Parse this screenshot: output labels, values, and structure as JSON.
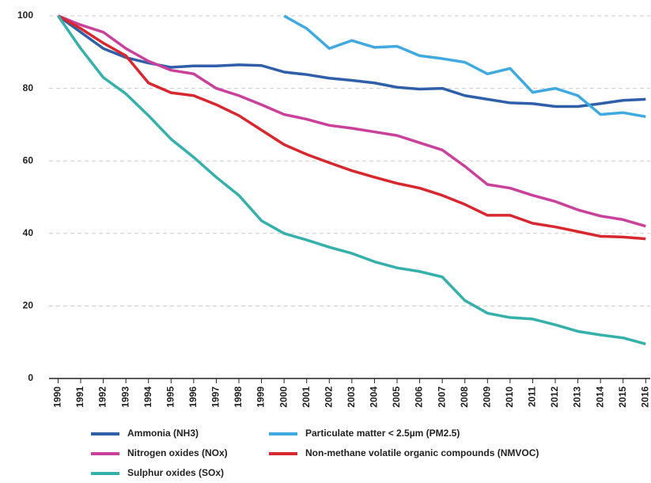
{
  "chart_data": {
    "type": "line",
    "x": [
      1990,
      1991,
      1992,
      1993,
      1994,
      1995,
      1996,
      1997,
      1998,
      1999,
      2000,
      2001,
      2002,
      2003,
      2004,
      2005,
      2006,
      2007,
      2008,
      2009,
      2010,
      2011,
      2012,
      2013,
      2014,
      2015,
      2016
    ],
    "xlim": [
      1989.6,
      2016.2
    ],
    "xticks": [
      1990,
      1991,
      1992,
      1993,
      1994,
      1995,
      1996,
      1997,
      1998,
      1999,
      2000,
      2001,
      2002,
      2003,
      2004,
      2005,
      2006,
      2007,
      2008,
      2009,
      2010,
      2011,
      2012,
      2013,
      2014,
      2015,
      2016
    ],
    "ylim": [
      0,
      100
    ],
    "yticks": [
      0,
      20,
      40,
      60,
      80,
      100
    ],
    "grid": true,
    "series": [
      {
        "name": "Ammonia (NH3)",
        "color": "#2f5fa8",
        "values": [
          100,
          95.5,
          91,
          88.5,
          87,
          85.8,
          86.2,
          86.2,
          86.5,
          86.3,
          84.5,
          83.8,
          82.8,
          82.2,
          81.5,
          80.3,
          79.8,
          80,
          78,
          77,
          76,
          75.8,
          75,
          75,
          75.8,
          76.7,
          77
        ]
      },
      {
        "name": "Particulate matter < 2.5µm (PM2.5)",
        "color": "#3fa9e0",
        "values": [
          null,
          null,
          null,
          null,
          null,
          null,
          null,
          null,
          null,
          null,
          100,
          96.5,
          91,
          93.2,
          91.3,
          91.6,
          89,
          88.2,
          87.2,
          84,
          85.5,
          78.9,
          80,
          78,
          72.8,
          73.3,
          72.2
        ]
      },
      {
        "name": "Nitrogen oxides (NOx)",
        "color": "#c9419a",
        "values": [
          100,
          97.5,
          95.5,
          91,
          87.5,
          85,
          84,
          80,
          78,
          75.5,
          72.8,
          71.5,
          69.8,
          69,
          68,
          67,
          65,
          63,
          58.5,
          53.5,
          52.5,
          50.5,
          48.8,
          46.5,
          44.8,
          43.8,
          42
        ]
      },
      {
        "name": "Non-methane volatile organic compounds (NMVOC)",
        "color": "#d7272f",
        "values": [
          100,
          96.5,
          92.5,
          89,
          81.5,
          78.8,
          78,
          75.5,
          72.5,
          68.5,
          64.5,
          61.8,
          59.5,
          57.3,
          55.5,
          53.8,
          52.5,
          50.5,
          48,
          45,
          45,
          42.8,
          41.8,
          40.5,
          39.2,
          39,
          38.5
        ]
      },
      {
        "name": "Sulphur oxides (SOx)",
        "color": "#35b0aa",
        "values": [
          100,
          91,
          83,
          78.5,
          72.5,
          66,
          61,
          55.5,
          50.5,
          43.5,
          40,
          38.2,
          36.2,
          34.5,
          32.2,
          30.5,
          29.5,
          28,
          21.5,
          18,
          16.8,
          16.4,
          14.8,
          13,
          12,
          11.2,
          9.5
        ]
      }
    ]
  }
}
